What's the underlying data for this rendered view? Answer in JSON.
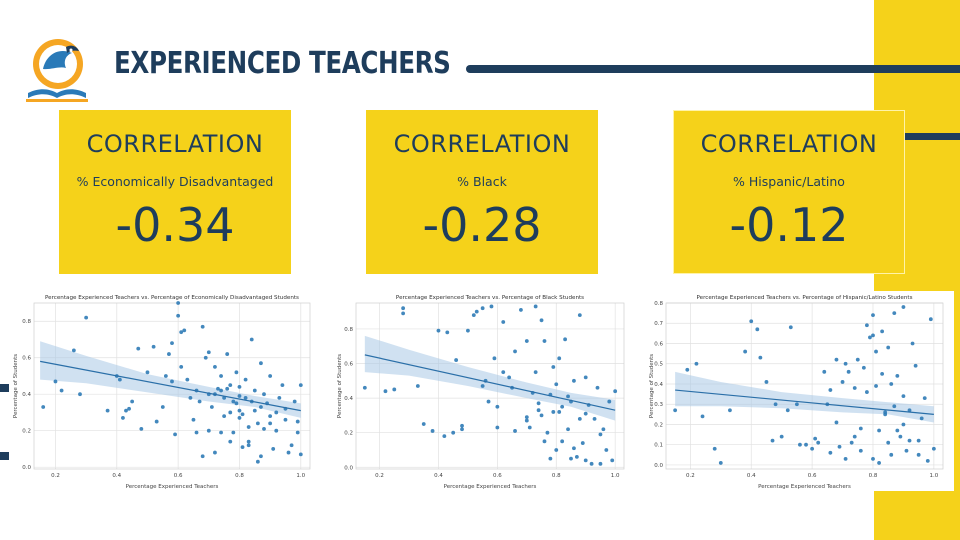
{
  "header": {
    "title": "EXPERIENCED TEACHERS"
  },
  "cards": [
    {
      "label": "CORRELATION",
      "subtitle": "% Economically Disadvantaged",
      "value": "-0.34"
    },
    {
      "label": "CORRELATION",
      "subtitle": "% Black",
      "value": "-0.28"
    },
    {
      "label": "CORRELATION",
      "subtitle": "% Hispanic/Latino",
      "value": "-0.12"
    }
  ],
  "colors": {
    "navy": "#1e3d5c",
    "yellow": "#f5d21a",
    "point": "#2f7bb6",
    "band": "#a9c8e6"
  },
  "chart_data": [
    {
      "type": "scatter",
      "title": "Percentage Experienced Teachers vs. Percentage of Economically Disadvantaged Students",
      "xlabel": "Percentage Experienced Teachers",
      "ylabel": "Percentage of Students",
      "xlim": [
        0.13,
        1.03
      ],
      "ylim": [
        -0.01,
        0.9
      ],
      "xticks": [
        "0.2",
        "0.4",
        "0.6",
        "0.8",
        "1.0"
      ],
      "xtick_values": [
        0.2,
        0.4,
        0.6,
        0.8,
        1.0
      ],
      "yticks": [
        "0.0",
        "0.2",
        "0.4",
        "0.6",
        "0.8"
      ],
      "ytick_values": [
        0.0,
        0.2,
        0.4,
        0.6,
        0.8
      ],
      "grid": true,
      "regression": {
        "x": [
          0.15,
          1.0
        ],
        "y": [
          0.58,
          0.31
        ]
      },
      "ci": {
        "x": [
          0.15,
          0.3,
          0.5,
          0.7,
          0.85,
          1.0
        ],
        "lower": [
          0.48,
          0.46,
          0.41,
          0.36,
          0.33,
          0.27
        ],
        "upper": [
          0.69,
          0.61,
          0.51,
          0.44,
          0.39,
          0.35
        ]
      },
      "points": {
        "x": [
          0.16,
          0.2,
          0.22,
          0.26,
          0.28,
          0.3,
          0.37,
          0.4,
          0.41,
          0.42,
          0.43,
          0.44,
          0.45,
          0.47,
          0.48,
          0.5,
          0.52,
          0.53,
          0.55,
          0.56,
          0.57,
          0.58,
          0.59,
          0.6,
          0.6,
          0.61,
          0.62,
          0.63,
          0.64,
          0.65,
          0.66,
          0.67,
          0.68,
          0.69,
          0.7,
          0.7,
          0.71,
          0.72,
          0.72,
          0.73,
          0.74,
          0.74,
          0.75,
          0.75,
          0.76,
          0.76,
          0.77,
          0.77,
          0.78,
          0.78,
          0.79,
          0.79,
          0.8,
          0.8,
          0.8,
          0.81,
          0.81,
          0.82,
          0.82,
          0.83,
          0.83,
          0.84,
          0.84,
          0.85,
          0.85,
          0.86,
          0.86,
          0.87,
          0.87,
          0.88,
          0.88,
          0.89,
          0.9,
          0.9,
          0.91,
          0.92,
          0.92,
          0.93,
          0.94,
          0.95,
          0.96,
          0.97,
          0.98,
          0.99,
          1.0,
          1.0,
          0.66,
          0.7,
          0.72,
          0.58,
          0.61,
          0.77,
          0.83,
          0.87,
          0.9,
          0.95,
          0.99,
          0.8,
          0.74,
          0.68
        ],
        "y": [
          0.33,
          0.47,
          0.42,
          0.64,
          0.4,
          0.82,
          0.31,
          0.5,
          0.48,
          0.27,
          0.31,
          0.32,
          0.36,
          0.65,
          0.21,
          0.52,
          0.66,
          0.25,
          0.33,
          0.5,
          0.62,
          0.47,
          0.18,
          0.9,
          0.83,
          0.55,
          0.75,
          0.48,
          0.38,
          0.26,
          0.42,
          0.36,
          0.77,
          0.6,
          0.4,
          0.63,
          0.33,
          0.4,
          0.55,
          0.43,
          0.19,
          0.5,
          0.28,
          0.38,
          0.62,
          0.43,
          0.3,
          0.45,
          0.36,
          0.19,
          0.35,
          0.52,
          0.31,
          0.39,
          0.44,
          0.11,
          0.29,
          0.38,
          0.48,
          0.12,
          0.22,
          0.36,
          0.7,
          0.31,
          0.42,
          0.24,
          0.03,
          0.33,
          0.57,
          0.21,
          0.4,
          0.35,
          0.5,
          0.28,
          0.1,
          0.3,
          0.2,
          0.38,
          0.45,
          0.26,
          0.08,
          0.12,
          0.36,
          0.19,
          0.45,
          0.07,
          0.19,
          0.2,
          0.08,
          0.68,
          0.74,
          0.14,
          0.14,
          0.06,
          0.24,
          0.32,
          0.25,
          0.27,
          0.42,
          0.06
        ]
      }
    },
    {
      "type": "scatter",
      "title": "Percentage Experienced Teachers vs. Percentage of Black Students",
      "xlabel": "Percentage Experienced Teachers",
      "ylabel": "Percentage of Students",
      "xlim": [
        0.12,
        1.03
      ],
      "ylim": [
        -0.01,
        0.95
      ],
      "xticks": [
        "0.2",
        "0.4",
        "0.6",
        "0.8",
        "1.0"
      ],
      "xtick_values": [
        0.2,
        0.4,
        0.6,
        0.8,
        1.0
      ],
      "yticks": [
        "0.0",
        "0.2",
        "0.4",
        "0.6",
        "0.8"
      ],
      "ytick_values": [
        0.0,
        0.2,
        0.4,
        0.6,
        0.8
      ],
      "grid": true,
      "regression": {
        "x": [
          0.15,
          1.0
        ],
        "y": [
          0.65,
          0.33
        ]
      },
      "ci": {
        "x": [
          0.15,
          0.3,
          0.5,
          0.7,
          0.85,
          1.0
        ],
        "lower": [
          0.55,
          0.53,
          0.47,
          0.4,
          0.35,
          0.27
        ],
        "upper": [
          0.76,
          0.68,
          0.58,
          0.49,
          0.43,
          0.39
        ]
      },
      "points": {
        "x": [
          0.15,
          0.22,
          0.25,
          0.28,
          0.28,
          0.33,
          0.35,
          0.38,
          0.4,
          0.42,
          0.43,
          0.45,
          0.46,
          0.48,
          0.5,
          0.52,
          0.53,
          0.55,
          0.56,
          0.57,
          0.58,
          0.59,
          0.6,
          0.62,
          0.62,
          0.64,
          0.65,
          0.66,
          0.68,
          0.7,
          0.7,
          0.71,
          0.72,
          0.73,
          0.73,
          0.74,
          0.75,
          0.75,
          0.76,
          0.76,
          0.77,
          0.78,
          0.78,
          0.79,
          0.8,
          0.8,
          0.81,
          0.81,
          0.82,
          0.82,
          0.83,
          0.84,
          0.85,
          0.85,
          0.86,
          0.86,
          0.87,
          0.88,
          0.88,
          0.89,
          0.9,
          0.9,
          0.91,
          0.92,
          0.93,
          0.94,
          0.95,
          0.96,
          0.97,
          0.98,
          0.99,
          1.0,
          0.66,
          0.7,
          0.74,
          0.79,
          0.84,
          0.9,
          0.95,
          0.6,
          0.55,
          0.48
        ],
        "y": [
          0.46,
          0.44,
          0.45,
          0.89,
          0.92,
          0.47,
          0.25,
          0.21,
          0.79,
          0.18,
          0.78,
          0.2,
          0.62,
          0.22,
          0.79,
          0.88,
          0.9,
          0.92,
          0.5,
          0.38,
          0.93,
          0.63,
          0.35,
          0.84,
          0.55,
          0.52,
          0.46,
          0.67,
          0.91,
          0.73,
          0.29,
          0.23,
          0.43,
          0.93,
          0.55,
          0.37,
          0.85,
          0.3,
          0.73,
          0.15,
          0.2,
          0.05,
          0.42,
          0.32,
          0.48,
          0.1,
          0.32,
          0.63,
          0.15,
          0.35,
          0.74,
          0.22,
          0.05,
          0.38,
          0.11,
          0.5,
          0.06,
          0.28,
          0.88,
          0.14,
          0.52,
          0.04,
          0.36,
          0.02,
          0.28,
          0.46,
          0.02,
          0.22,
          0.1,
          0.38,
          0.04,
          0.44,
          0.21,
          0.27,
          0.33,
          0.58,
          0.41,
          0.31,
          0.19,
          0.23,
          0.47,
          0.24
        ]
      }
    },
    {
      "type": "scatter",
      "title": "Percentage Experienced Teachers vs. Percentage of Hispanic/Latino Students",
      "xlabel": "Percentage Experienced Teachers",
      "ylabel": "Percentage of Students",
      "xlim": [
        0.12,
        1.03
      ],
      "ylim": [
        -0.02,
        0.8
      ],
      "xticks": [
        "0.2",
        "0.4",
        "0.6",
        "0.8",
        "1.0"
      ],
      "xtick_values": [
        0.2,
        0.4,
        0.6,
        0.8,
        1.0
      ],
      "yticks": [
        "0.0",
        "0.1",
        "0.2",
        "0.3",
        "0.4",
        "0.5",
        "0.6",
        "0.7",
        "0.8"
      ],
      "ytick_values": [
        0.0,
        0.1,
        0.2,
        0.3,
        0.4,
        0.5,
        0.6,
        0.7,
        0.8
      ],
      "grid": true,
      "regression": {
        "x": [
          0.15,
          1.0
        ],
        "y": [
          0.37,
          0.25
        ]
      },
      "ci": {
        "x": [
          0.15,
          0.3,
          0.5,
          0.7,
          0.85,
          1.0
        ],
        "lower": [
          0.29,
          0.29,
          0.28,
          0.26,
          0.25,
          0.21
        ],
        "upper": [
          0.46,
          0.41,
          0.36,
          0.33,
          0.31,
          0.29
        ]
      },
      "points": {
        "x": [
          0.15,
          0.19,
          0.22,
          0.24,
          0.28,
          0.3,
          0.33,
          0.38,
          0.4,
          0.42,
          0.43,
          0.45,
          0.47,
          0.48,
          0.5,
          0.52,
          0.53,
          0.55,
          0.56,
          0.58,
          0.6,
          0.61,
          0.62,
          0.64,
          0.65,
          0.66,
          0.68,
          0.69,
          0.7,
          0.71,
          0.72,
          0.73,
          0.74,
          0.75,
          0.76,
          0.77,
          0.78,
          0.79,
          0.8,
          0.8,
          0.81,
          0.81,
          0.82,
          0.83,
          0.83,
          0.84,
          0.85,
          0.85,
          0.86,
          0.87,
          0.87,
          0.88,
          0.89,
          0.9,
          0.9,
          0.91,
          0.92,
          0.93,
          0.94,
          0.95,
          0.96,
          0.97,
          0.98,
          0.99,
          1.0,
          0.78,
          0.82,
          0.84,
          0.86,
          0.88,
          0.9,
          0.92,
          0.95,
          0.8,
          0.76,
          0.74,
          0.71,
          0.68,
          0.66
        ],
        "y": [
          0.27,
          0.47,
          0.5,
          0.24,
          0.08,
          0.01,
          0.27,
          0.56,
          0.71,
          0.67,
          0.53,
          0.41,
          0.12,
          0.3,
          0.14,
          0.27,
          0.68,
          0.3,
          0.1,
          0.1,
          0.08,
          0.13,
          0.11,
          0.46,
          0.3,
          0.06,
          0.52,
          0.09,
          0.41,
          0.5,
          0.46,
          0.11,
          0.38,
          0.52,
          0.18,
          0.48,
          0.69,
          0.63,
          0.74,
          0.03,
          0.56,
          0.39,
          0.17,
          0.45,
          0.66,
          0.25,
          0.58,
          0.11,
          0.05,
          0.29,
          0.75,
          0.44,
          0.14,
          0.2,
          0.34,
          0.07,
          0.27,
          0.6,
          0.49,
          0.05,
          0.23,
          0.33,
          0.02,
          0.72,
          0.08,
          0.36,
          0.01,
          0.26,
          0.4,
          0.17,
          0.78,
          0.12,
          0.12,
          0.64,
          0.07,
          0.14,
          0.03,
          0.21,
          0.37
        ]
      }
    }
  ]
}
